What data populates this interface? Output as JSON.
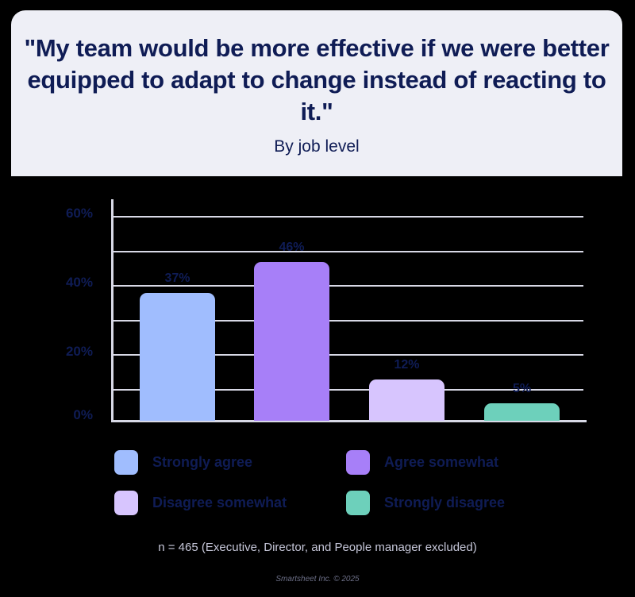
{
  "header": {
    "title": "\"My team would be more effective if we were better equipped to adapt to change instead of reacting to it.\"",
    "subtitle": "By job level"
  },
  "axis": {
    "y_ticks": [
      "60%",
      "40%",
      "20%",
      "0%"
    ]
  },
  "bars": [
    {
      "label": "37%",
      "value": 37,
      "color": "#a0bdfe"
    },
    {
      "label": "46%",
      "value": 46,
      "color": "#a77ff8"
    },
    {
      "label": "12%",
      "value": 12,
      "color": "#d7c5fe"
    },
    {
      "label": "5%",
      "value": 5,
      "color": "#6dd0bb"
    }
  ],
  "legend": [
    {
      "label": "Strongly agree",
      "color": "#a0bdfe"
    },
    {
      "label": "Agree somewhat",
      "color": "#a77ff8"
    },
    {
      "label": "Disagree somewhat",
      "color": "#d7c5fe"
    },
    {
      "label": "Strongly disagree",
      "color": "#6dd0bb"
    }
  ],
  "footer": {
    "note": "n = 465 (Executive, Director, and People manager excluded)",
    "credit": "Smartsheet Inc. © 2025"
  },
  "chart_data": {
    "type": "bar",
    "title": "\"My team would be more effective if we were better equipped to adapt to change instead of reacting to it.\"",
    "subtitle": "By job level",
    "categories": [
      "Strongly agree",
      "Agree somewhat",
      "Disagree somewhat",
      "Strongly disagree"
    ],
    "values": [
      37,
      46,
      12,
      5
    ],
    "colors": [
      "#a0bdfe",
      "#a77ff8",
      "#d7c5fe",
      "#6dd0bb"
    ],
    "xlabel": "",
    "ylabel": "",
    "ylim": [
      0,
      60
    ],
    "y_ticks": [
      "0%",
      "20%",
      "40%",
      "60%"
    ],
    "grid": true,
    "legend_position": "bottom",
    "annotations": [
      "n = 465 (Executive, Director, and People manager excluded)",
      "Smartsheet Inc. © 2025"
    ]
  }
}
